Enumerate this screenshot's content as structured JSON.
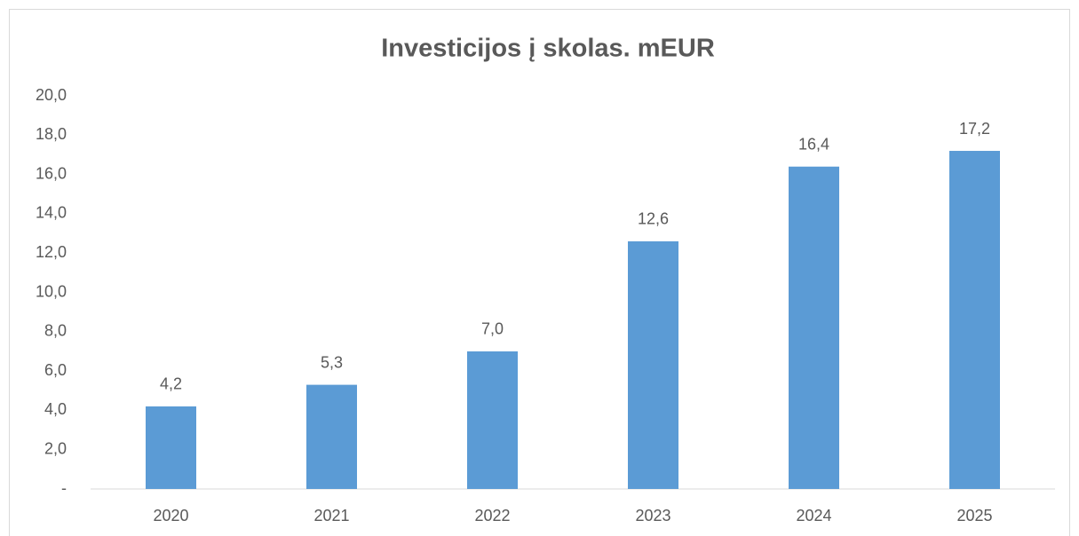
{
  "chart_data": {
    "type": "bar",
    "title": "Investicijos į skolas. mEUR",
    "categories": [
      "2020",
      "2021",
      "2022",
      "2023",
      "2024",
      "2025"
    ],
    "values": [
      4.2,
      5.3,
      7.0,
      12.6,
      16.4,
      17.2
    ],
    "value_labels": [
      "4,2",
      "5,3",
      "7,0",
      "12,6",
      "16,4",
      "17,2"
    ],
    "color": "#5b9bd5",
    "ylim": [
      0,
      20
    ],
    "yticks": [
      {
        "value": 0,
        "label": "-"
      },
      {
        "value": 2,
        "label": "2,0"
      },
      {
        "value": 4,
        "label": "4,0"
      },
      {
        "value": 6,
        "label": "6,0"
      },
      {
        "value": 8,
        "label": "8,0"
      },
      {
        "value": 10,
        "label": "10,0"
      },
      {
        "value": 12,
        "label": "12,0"
      },
      {
        "value": 14,
        "label": "14,0"
      },
      {
        "value": 16,
        "label": "16,0"
      },
      {
        "value": 18,
        "label": "18,0"
      },
      {
        "value": 20,
        "label": "20,0"
      }
    ],
    "grid": false
  }
}
